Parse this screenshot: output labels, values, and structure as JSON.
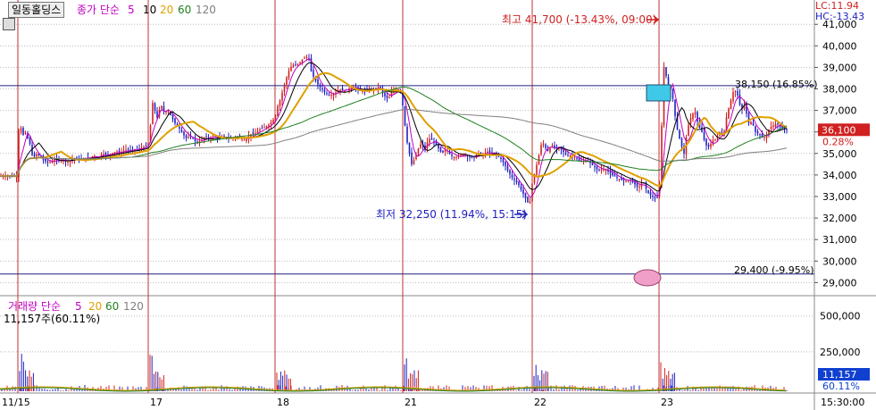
{
  "header": {
    "stock_name": "일동홀딩스",
    "price_ma_label": "종가 단순",
    "price_ma_periods": [
      "5",
      "10",
      "20",
      "60",
      "120"
    ],
    "lc": "LC:11.94",
    "hc": "HC:-13.43"
  },
  "volume_header": {
    "label": "거래량 단순",
    "ma_periods": [
      "5",
      "20",
      "60",
      "120"
    ],
    "current": "11,157주(60.11%)"
  },
  "colors": {
    "ma5": "#c000c0",
    "ma10": "#000000",
    "ma20": "#e0a000",
    "ma60": "#208020",
    "ma120": "#808080",
    "up": "#d02020",
    "down": "#2020c0",
    "grid": "#bbbbbb",
    "session": "#c03030",
    "hline": "#202080",
    "current_badge": "#d02020",
    "volume_badge": "#1040d0"
  },
  "chart_data": {
    "type": "candlestick",
    "x_ticks": [
      "11/15",
      "17",
      "18",
      "21",
      "22",
      "23"
    ],
    "time_label": "15:30:00",
    "price_axis": {
      "ylim": [
        28600,
        41300
      ],
      "ticks": [
        "29,000",
        "30,000",
        "31,000",
        "32,000",
        "33,000",
        "34,000",
        "35,000",
        "36,000",
        "37,000",
        "38,000",
        "39,000",
        "40,000",
        "41,000"
      ]
    },
    "volume_axis": {
      "ticks": [
        "250,000",
        "500,000"
      ]
    },
    "current_price": "36,100",
    "current_change": "0.28%",
    "current_volume": "11,157",
    "current_volume_ratio": "60.11%",
    "annotations": {
      "high": "최고 41,700 (-13.43%, 09:00)",
      "low": "최저 32,250 (11.94%, 15:15)",
      "level_upper": "38,150 (16.85%)",
      "level_lower": "29,400 (-9.95%)"
    },
    "reference_lines": [
      38150,
      29400
    ],
    "price_path": [
      [
        0,
        33950
      ],
      [
        3,
        33950
      ],
      [
        6,
        33950
      ],
      [
        9,
        33950
      ],
      [
        12,
        33950
      ],
      [
        15,
        33950
      ],
      [
        17,
        33950
      ],
      [
        19,
        33950
      ],
      [
        21,
        36050
      ],
      [
        23,
        36300
      ],
      [
        25,
        35800
      ],
      [
        28,
        36000
      ],
      [
        31,
        35700
      ],
      [
        34,
        35400
      ],
      [
        37,
        34700
      ],
      [
        40,
        35000
      ],
      [
        44,
        34900
      ],
      [
        48,
        34700
      ],
      [
        52,
        34600
      ],
      [
        56,
        34600
      ],
      [
        60,
        34700
      ],
      [
        65,
        34700
      ],
      [
        70,
        34700
      ],
      [
        75,
        34600
      ],
      [
        80,
        34700
      ],
      [
        85,
        34800
      ],
      [
        90,
        34700
      ],
      [
        95,
        34800
      ],
      [
        100,
        34800
      ],
      [
        105,
        34900
      ],
      [
        110,
        34800
      ],
      [
        115,
        35000
      ],
      [
        120,
        34900
      ],
      [
        125,
        35000
      ],
      [
        130,
        35100
      ],
      [
        135,
        35000
      ],
      [
        140,
        35200
      ],
      [
        145,
        35100
      ],
      [
        150,
        35200
      ],
      [
        155,
        35200
      ],
      [
        160,
        35300
      ],
      [
        163,
        35300
      ],
      [
        166,
        35500
      ],
      [
        168,
        36000
      ],
      [
        170,
        37200
      ],
      [
        172,
        37500
      ],
      [
        175,
        36500
      ],
      [
        178,
        37000
      ],
      [
        181,
        37200
      ],
      [
        184,
        36900
      ],
      [
        188,
        37000
      ],
      [
        192,
        36700
      ],
      [
        196,
        36400
      ],
      [
        200,
        36200
      ],
      [
        204,
        36000
      ],
      [
        208,
        35700
      ],
      [
        212,
        35800
      ],
      [
        216,
        35700
      ],
      [
        220,
        35500
      ],
      [
        225,
        35600
      ],
      [
        230,
        35800
      ],
      [
        235,
        35700
      ],
      [
        240,
        35800
      ],
      [
        245,
        35700
      ],
      [
        250,
        35800
      ],
      [
        255,
        35700
      ],
      [
        260,
        35700
      ],
      [
        265,
        35800
      ],
      [
        270,
        35700
      ],
      [
        275,
        35600
      ],
      [
        280,
        35900
      ],
      [
        285,
        35900
      ],
      [
        290,
        36100
      ],
      [
        295,
        36200
      ],
      [
        300,
        36300
      ],
      [
        305,
        36500
      ],
      [
        308,
        36700
      ],
      [
        311,
        37200
      ],
      [
        314,
        37500
      ],
      [
        317,
        38000
      ],
      [
        320,
        38400
      ],
      [
        323,
        38800
      ],
      [
        327,
        39100
      ],
      [
        331,
        39100
      ],
      [
        335,
        39200
      ],
      [
        339,
        39400
      ],
      [
        343,
        39500
      ],
      [
        346,
        39400
      ],
      [
        349,
        38700
      ],
      [
        352,
        38500
      ],
      [
        356,
        38200
      ],
      [
        360,
        38000
      ],
      [
        365,
        37800
      ],
      [
        370,
        37700
      ],
      [
        375,
        37800
      ],
      [
        380,
        38000
      ],
      [
        385,
        37900
      ],
      [
        390,
        38000
      ],
      [
        395,
        38100
      ],
      [
        400,
        38000
      ],
      [
        405,
        37900
      ],
      [
        410,
        37900
      ],
      [
        415,
        38000
      ],
      [
        420,
        38000
      ],
      [
        425,
        38100
      ],
      [
        430,
        37700
      ],
      [
        435,
        37500
      ],
      [
        440,
        38000
      ],
      [
        445,
        38000
      ],
      [
        449,
        37900
      ],
      [
        452,
        36900
      ],
      [
        455,
        35700
      ],
      [
        458,
        35100
      ],
      [
        461,
        34500
      ],
      [
        465,
        34800
      ],
      [
        468,
        35200
      ],
      [
        472,
        35500
      ],
      [
        476,
        35200
      ],
      [
        480,
        35700
      ],
      [
        485,
        35600
      ],
      [
        490,
        35300
      ],
      [
        495,
        35000
      ],
      [
        500,
        35200
      ],
      [
        505,
        34900
      ],
      [
        510,
        34800
      ],
      [
        515,
        34900
      ],
      [
        520,
        35000
      ],
      [
        525,
        34800
      ],
      [
        530,
        34800
      ],
      [
        535,
        35000
      ],
      [
        540,
        34900
      ],
      [
        545,
        35100
      ],
      [
        550,
        35000
      ],
      [
        555,
        35000
      ],
      [
        560,
        34800
      ],
      [
        565,
        34500
      ],
      [
        570,
        34100
      ],
      [
        575,
        33800
      ],
      [
        580,
        33600
      ],
      [
        585,
        33200
      ],
      [
        590,
        32800
      ],
      [
        593,
        32600
      ],
      [
        596,
        33600
      ],
      [
        600,
        34300
      ],
      [
        604,
        35000
      ],
      [
        607,
        35600
      ],
      [
        610,
        35300
      ],
      [
        614,
        35100
      ],
      [
        618,
        35400
      ],
      [
        622,
        35200
      ],
      [
        626,
        35300
      ],
      [
        630,
        35100
      ],
      [
        635,
        34900
      ],
      [
        640,
        34900
      ],
      [
        645,
        34800
      ],
      [
        650,
        34600
      ],
      [
        655,
        34700
      ],
      [
        660,
        34600
      ],
      [
        665,
        34400
      ],
      [
        670,
        34200
      ],
      [
        675,
        34300
      ],
      [
        680,
        34200
      ],
      [
        685,
        34000
      ],
      [
        690,
        33900
      ],
      [
        695,
        33800
      ],
      [
        700,
        33700
      ],
      [
        705,
        33800
      ],
      [
        710,
        33600
      ],
      [
        715,
        33400
      ],
      [
        720,
        33700
      ],
      [
        725,
        33200
      ],
      [
        730,
        33000
      ],
      [
        735,
        32900
      ],
      [
        738,
        33000
      ],
      [
        741,
        36300
      ],
      [
        743,
        39100
      ],
      [
        746,
        38600
      ],
      [
        749,
        37800
      ],
      [
        752,
        38100
      ],
      [
        755,
        37000
      ],
      [
        758,
        36200
      ],
      [
        762,
        35500
      ],
      [
        766,
        35000
      ],
      [
        770,
        36200
      ],
      [
        774,
        36700
      ],
      [
        778,
        37000
      ],
      [
        782,
        36300
      ],
      [
        786,
        36000
      ],
      [
        790,
        35400
      ],
      [
        794,
        35300
      ],
      [
        798,
        35600
      ],
      [
        802,
        35700
      ],
      [
        806,
        36000
      ],
      [
        810,
        35800
      ],
      [
        814,
        36800
      ],
      [
        818,
        37400
      ],
      [
        822,
        38000
      ],
      [
        826,
        37700
      ],
      [
        830,
        37000
      ],
      [
        834,
        37300
      ],
      [
        838,
        36400
      ],
      [
        842,
        36500
      ],
      [
        846,
        36000
      ],
      [
        850,
        35900
      ],
      [
        854,
        35700
      ],
      [
        858,
        35800
      ],
      [
        862,
        36200
      ],
      [
        866,
        36300
      ],
      [
        870,
        36400
      ],
      [
        874,
        36200
      ],
      [
        878,
        36100
      ],
      [
        881,
        36100
      ]
    ]
  }
}
